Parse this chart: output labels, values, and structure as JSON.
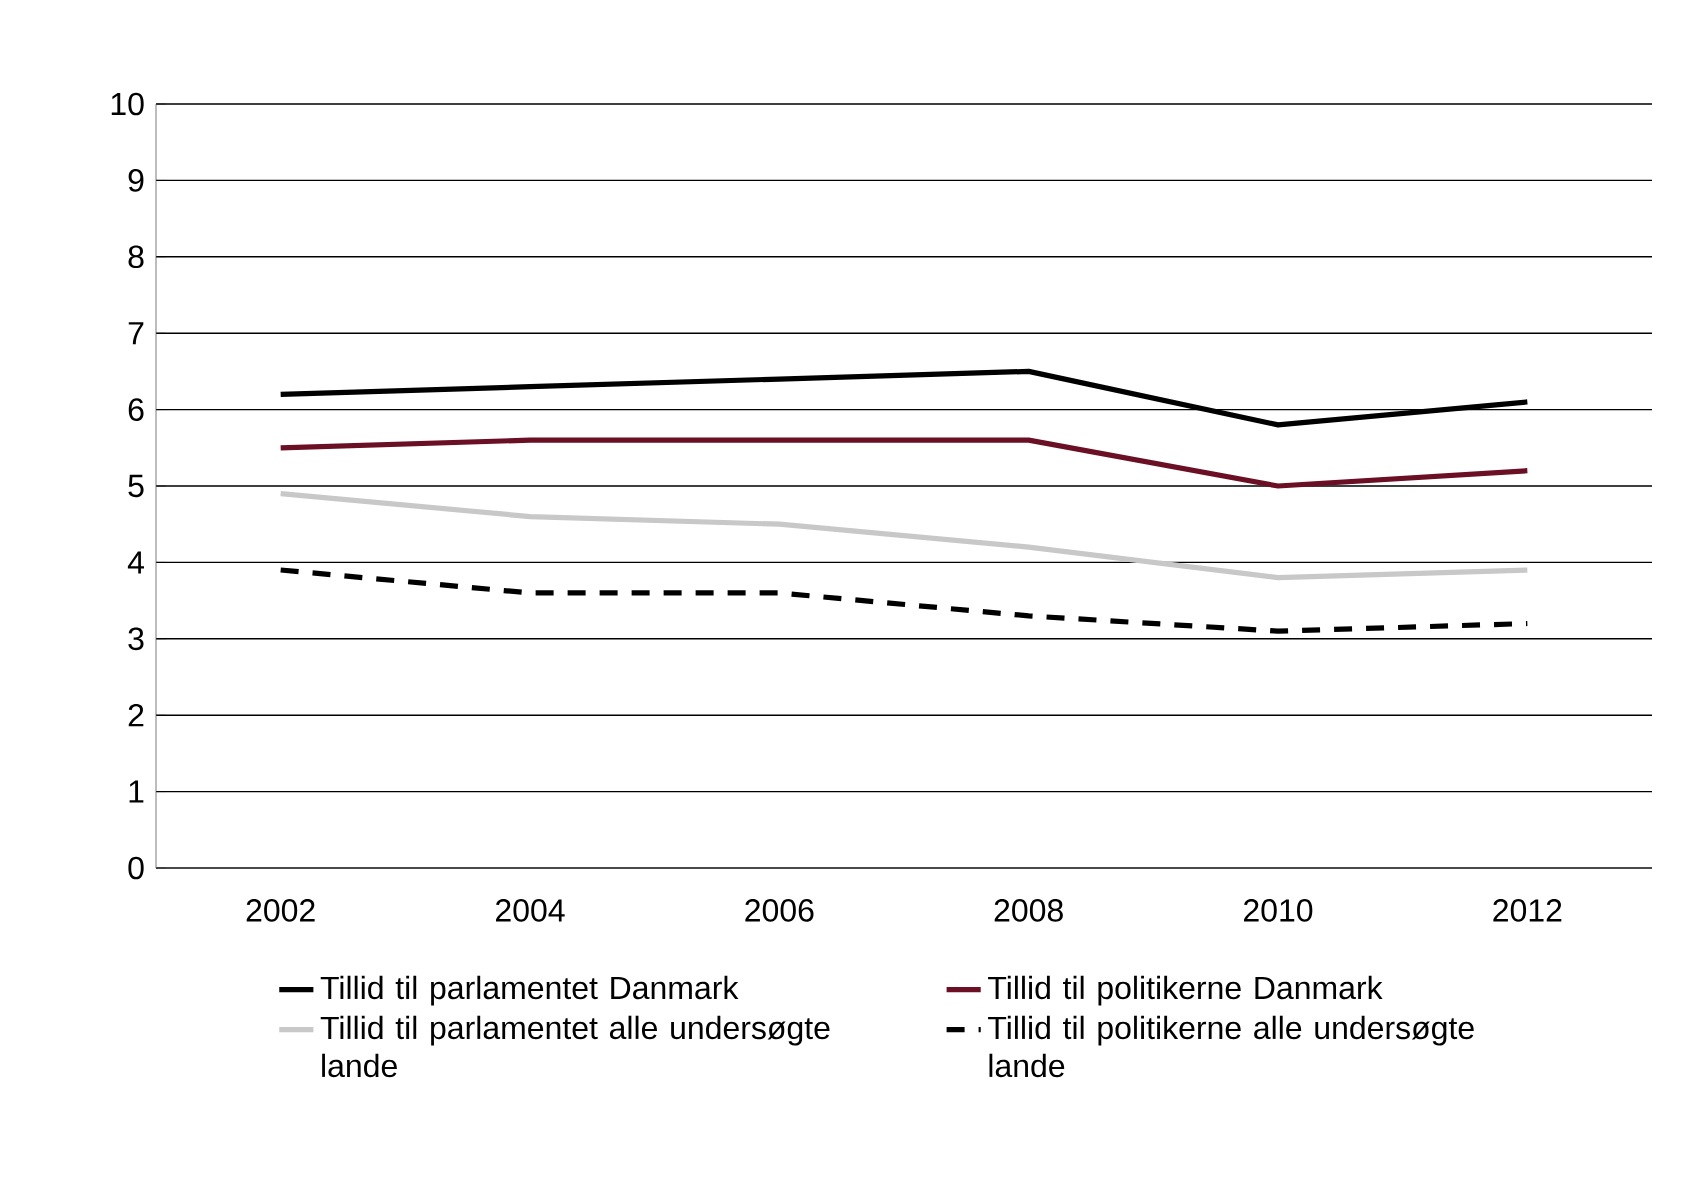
{
  "chart_data": {
    "type": "line",
    "categories": [
      "2002",
      "2004",
      "2006",
      "2008",
      "2010",
      "2012"
    ],
    "series": [
      {
        "name": "Tillid til parlamentet Danmark",
        "color": "#000000",
        "line_style": "solid",
        "values": [
          6.2,
          6.3,
          6.4,
          6.5,
          5.8,
          6.1
        ]
      },
      {
        "name": "Tillid til politikerne Danmark",
        "color": "#6b0f24",
        "line_style": "solid",
        "values": [
          5.5,
          5.6,
          5.6,
          5.6,
          5.0,
          5.2
        ]
      },
      {
        "name": "Tillid til parlamentet alle undersøgte lande",
        "color": "#c8c8c8",
        "line_style": "solid",
        "values": [
          4.9,
          4.6,
          4.5,
          4.2,
          3.8,
          3.9
        ]
      },
      {
        "name": "Tillid til politikerne alle undersøgte lande",
        "color": "#000000",
        "line_style": "dashed",
        "values": [
          3.9,
          3.6,
          3.6,
          3.3,
          3.1,
          3.2
        ]
      }
    ],
    "ylim": [
      0,
      10
    ],
    "yticks": [
      0,
      1,
      2,
      3,
      4,
      5,
      6,
      7,
      8,
      9,
      10
    ],
    "grid": "y",
    "legend": "bottom",
    "marker": "none"
  }
}
